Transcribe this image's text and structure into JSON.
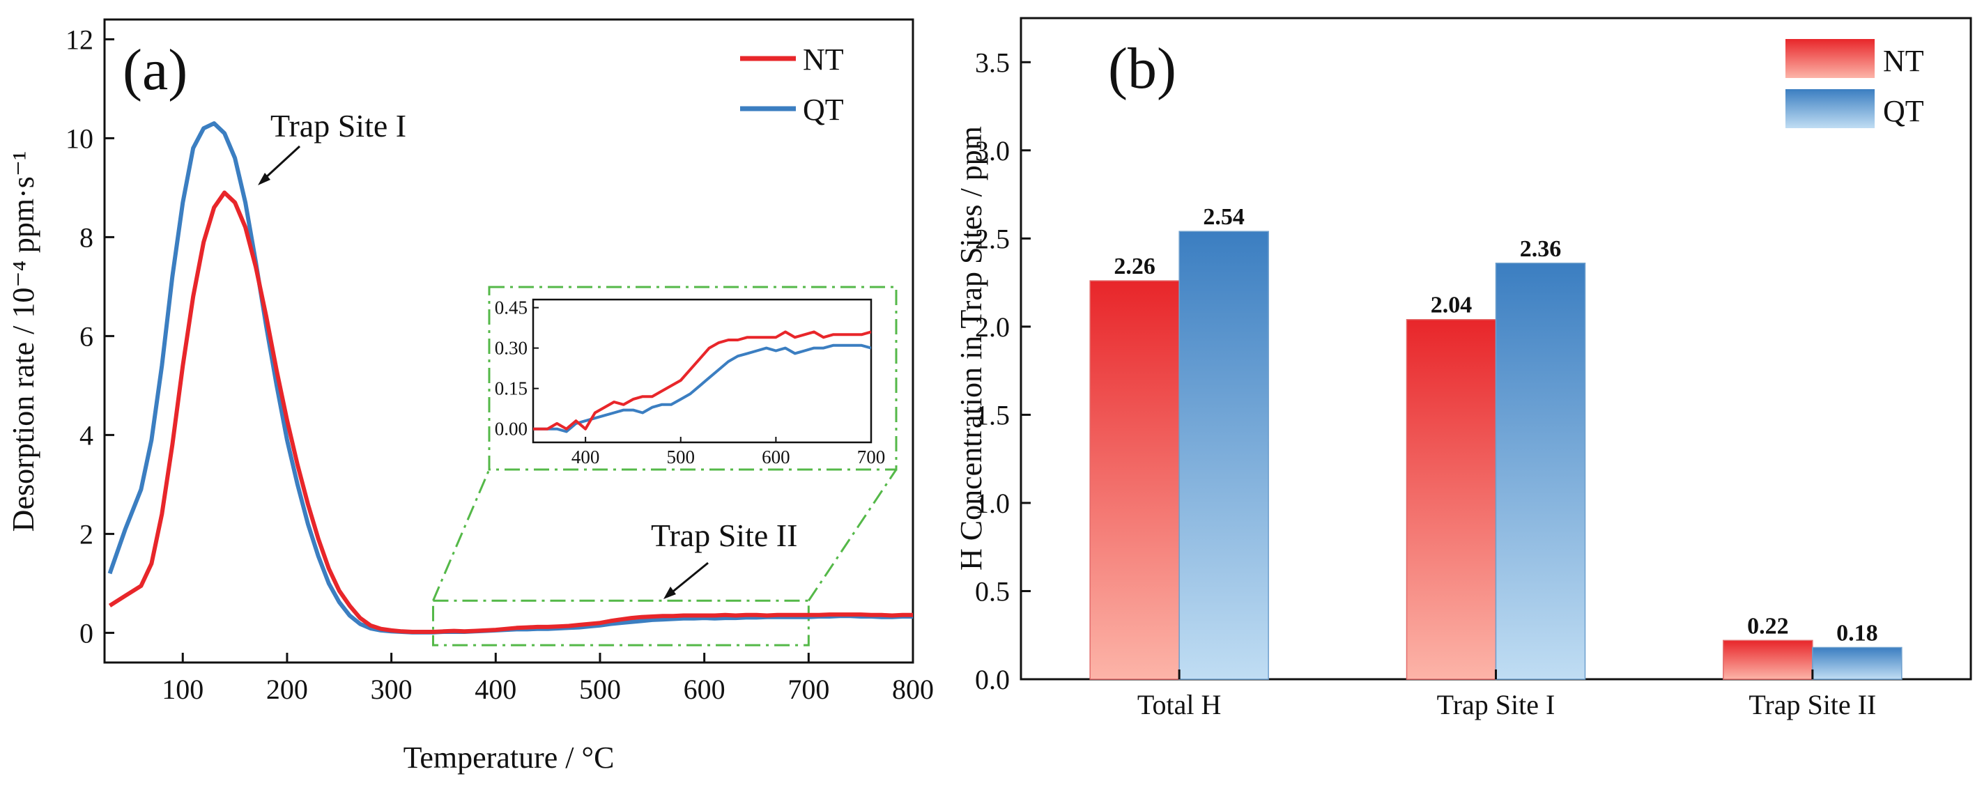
{
  "colors": {
    "nt": "#e8262a",
    "qt": "#3b7ec1",
    "zoom_box": "#54b848"
  },
  "chart_data": [
    {
      "id": "a",
      "type": "line",
      "panel_label": "(a)",
      "xlabel": "Temperature / °C",
      "ylabel": "Desorption rate / 10⁻⁴ ppm·s⁻¹",
      "xlim": [
        25,
        800
      ],
      "ylim": [
        -0.6,
        12.4
      ],
      "xticks": [
        100,
        200,
        300,
        400,
        500,
        600,
        700,
        800
      ],
      "yticks": [
        0,
        2,
        4,
        6,
        8,
        10,
        12
      ],
      "legend": [
        "NT",
        "QT"
      ],
      "legend_position": "top-right",
      "annotations": [
        {
          "text": "Trap Site I",
          "target_x": 165,
          "target_y": 9.0
        },
        {
          "text": "Trap Site II",
          "target_x": 520,
          "target_y": 0.9
        }
      ],
      "series": [
        {
          "name": "NT",
          "x": [
            30,
            45,
            60,
            70,
            80,
            90,
            100,
            110,
            120,
            130,
            140,
            150,
            160,
            170,
            180,
            190,
            200,
            210,
            220,
            230,
            240,
            250,
            260,
            270,
            280,
            290,
            300,
            310,
            320,
            330,
            340,
            350,
            360,
            370,
            380,
            390,
            400,
            410,
            420,
            430,
            440,
            450,
            460,
            470,
            480,
            490,
            500,
            510,
            520,
            530,
            540,
            550,
            560,
            570,
            580,
            590,
            600,
            610,
            620,
            630,
            640,
            650,
            660,
            670,
            680,
            690,
            700,
            710,
            720,
            730,
            740,
            750,
            760,
            770,
            780,
            790,
            800
          ],
          "values": [
            0.55,
            0.75,
            0.95,
            1.4,
            2.4,
            3.8,
            5.4,
            6.8,
            7.9,
            8.6,
            8.9,
            8.7,
            8.2,
            7.4,
            6.4,
            5.3,
            4.3,
            3.4,
            2.6,
            1.9,
            1.3,
            0.85,
            0.55,
            0.3,
            0.15,
            0.08,
            0.05,
            0.03,
            0.02,
            0.02,
            0.02,
            0.03,
            0.04,
            0.03,
            0.04,
            0.05,
            0.06,
            0.08,
            0.1,
            0.11,
            0.12,
            0.12,
            0.13,
            0.14,
            0.16,
            0.18,
            0.2,
            0.24,
            0.27,
            0.3,
            0.32,
            0.33,
            0.34,
            0.34,
            0.35,
            0.35,
            0.35,
            0.35,
            0.36,
            0.35,
            0.36,
            0.36,
            0.35,
            0.36,
            0.36,
            0.36,
            0.36,
            0.36,
            0.37,
            0.37,
            0.37,
            0.37,
            0.36,
            0.36,
            0.35,
            0.36,
            0.36
          ]
        },
        {
          "name": "QT",
          "x": [
            30,
            45,
            60,
            70,
            80,
            90,
            100,
            110,
            120,
            130,
            140,
            150,
            160,
            170,
            180,
            190,
            200,
            210,
            220,
            230,
            240,
            250,
            260,
            270,
            280,
            290,
            300,
            310,
            320,
            330,
            340,
            350,
            360,
            370,
            380,
            390,
            400,
            410,
            420,
            430,
            440,
            450,
            460,
            470,
            480,
            490,
            500,
            510,
            520,
            530,
            540,
            550,
            560,
            570,
            580,
            590,
            600,
            610,
            620,
            630,
            640,
            650,
            660,
            670,
            680,
            690,
            700,
            710,
            720,
            730,
            740,
            750,
            760,
            770,
            780,
            790,
            800
          ],
          "values": [
            1.2,
            2.1,
            2.9,
            3.9,
            5.4,
            7.2,
            8.7,
            9.8,
            10.2,
            10.3,
            10.1,
            9.6,
            8.7,
            7.5,
            6.2,
            5.0,
            3.9,
            3.0,
            2.2,
            1.55,
            1.0,
            0.62,
            0.35,
            0.18,
            0.09,
            0.05,
            0.03,
            0.02,
            0.01,
            0.01,
            0.01,
            0.02,
            0.02,
            0.02,
            0.03,
            0.04,
            0.05,
            0.06,
            0.07,
            0.07,
            0.08,
            0.08,
            0.09,
            0.1,
            0.11,
            0.13,
            0.15,
            0.18,
            0.2,
            0.22,
            0.24,
            0.26,
            0.27,
            0.28,
            0.29,
            0.29,
            0.3,
            0.29,
            0.3,
            0.3,
            0.31,
            0.31,
            0.32,
            0.32,
            0.32,
            0.32,
            0.32,
            0.33,
            0.33,
            0.34,
            0.34,
            0.33,
            0.33,
            0.32,
            0.32,
            0.33,
            0.33
          ]
        }
      ],
      "inset": {
        "source_region": {
          "x": [
            340,
            700
          ],
          "y": [
            -0.25,
            0.65
          ]
        },
        "xlim": [
          345,
          700
        ],
        "ylim": [
          -0.05,
          0.48
        ],
        "xticks": [
          400,
          500,
          600,
          700
        ],
        "yticks": [
          0.0,
          0.15,
          0.3,
          0.45
        ],
        "ytick_labels": [
          "0.00",
          "0.15",
          "0.30",
          "0.45"
        ],
        "series": [
          {
            "name": "NT",
            "x": [
              345,
              360,
              370,
              380,
              390,
              400,
              410,
              420,
              430,
              440,
              450,
              460,
              470,
              480,
              490,
              500,
              510,
              520,
              530,
              540,
              550,
              560,
              570,
              580,
              590,
              600,
              610,
              620,
              630,
              640,
              650,
              660,
              670,
              680,
              690,
              700
            ],
            "values": [
              0.0,
              0.0,
              0.02,
              0.0,
              0.03,
              0.0,
              0.06,
              0.08,
              0.1,
              0.09,
              0.11,
              0.12,
              0.12,
              0.14,
              0.16,
              0.18,
              0.22,
              0.26,
              0.3,
              0.32,
              0.33,
              0.33,
              0.34,
              0.34,
              0.34,
              0.34,
              0.36,
              0.34,
              0.35,
              0.36,
              0.34,
              0.35,
              0.35,
              0.35,
              0.35,
              0.36
            ]
          },
          {
            "name": "QT",
            "x": [
              345,
              360,
              370,
              380,
              390,
              400,
              410,
              420,
              430,
              440,
              450,
              460,
              470,
              480,
              490,
              500,
              510,
              520,
              530,
              540,
              550,
              560,
              570,
              580,
              590,
              600,
              610,
              620,
              630,
              640,
              650,
              660,
              670,
              680,
              690,
              700
            ],
            "values": [
              0.0,
              0.0,
              0.0,
              -0.01,
              0.02,
              0.03,
              0.04,
              0.05,
              0.06,
              0.07,
              0.07,
              0.06,
              0.08,
              0.09,
              0.09,
              0.11,
              0.13,
              0.16,
              0.19,
              0.22,
              0.25,
              0.27,
              0.28,
              0.29,
              0.3,
              0.29,
              0.3,
              0.28,
              0.29,
              0.3,
              0.3,
              0.31,
              0.31,
              0.31,
              0.31,
              0.3
            ]
          }
        ]
      }
    },
    {
      "id": "b",
      "type": "bar",
      "panel_label": "(b)",
      "xlabel": "",
      "ylabel": "H Concentration in Trap Sites / ppm",
      "ylim": [
        0,
        3.75
      ],
      "yticks": [
        0.0,
        0.5,
        1.0,
        1.5,
        2.0,
        2.5,
        3.0,
        3.5
      ],
      "ytick_labels": [
        "0.0",
        "0.5",
        "1.0",
        "1.5",
        "2.0",
        "2.5",
        "3.0",
        "3.5"
      ],
      "categories": [
        "Total H",
        "Trap Site I",
        "Trap Site II"
      ],
      "legend_position": "top-right",
      "series": [
        {
          "name": "NT",
          "values": [
            2.26,
            2.04,
            0.22
          ],
          "labels": [
            "2.26",
            "2.04",
            "0.22"
          ]
        },
        {
          "name": "QT",
          "values": [
            2.54,
            2.36,
            0.18
          ],
          "labels": [
            "2.54",
            "2.36",
            "0.18"
          ]
        }
      ]
    }
  ]
}
